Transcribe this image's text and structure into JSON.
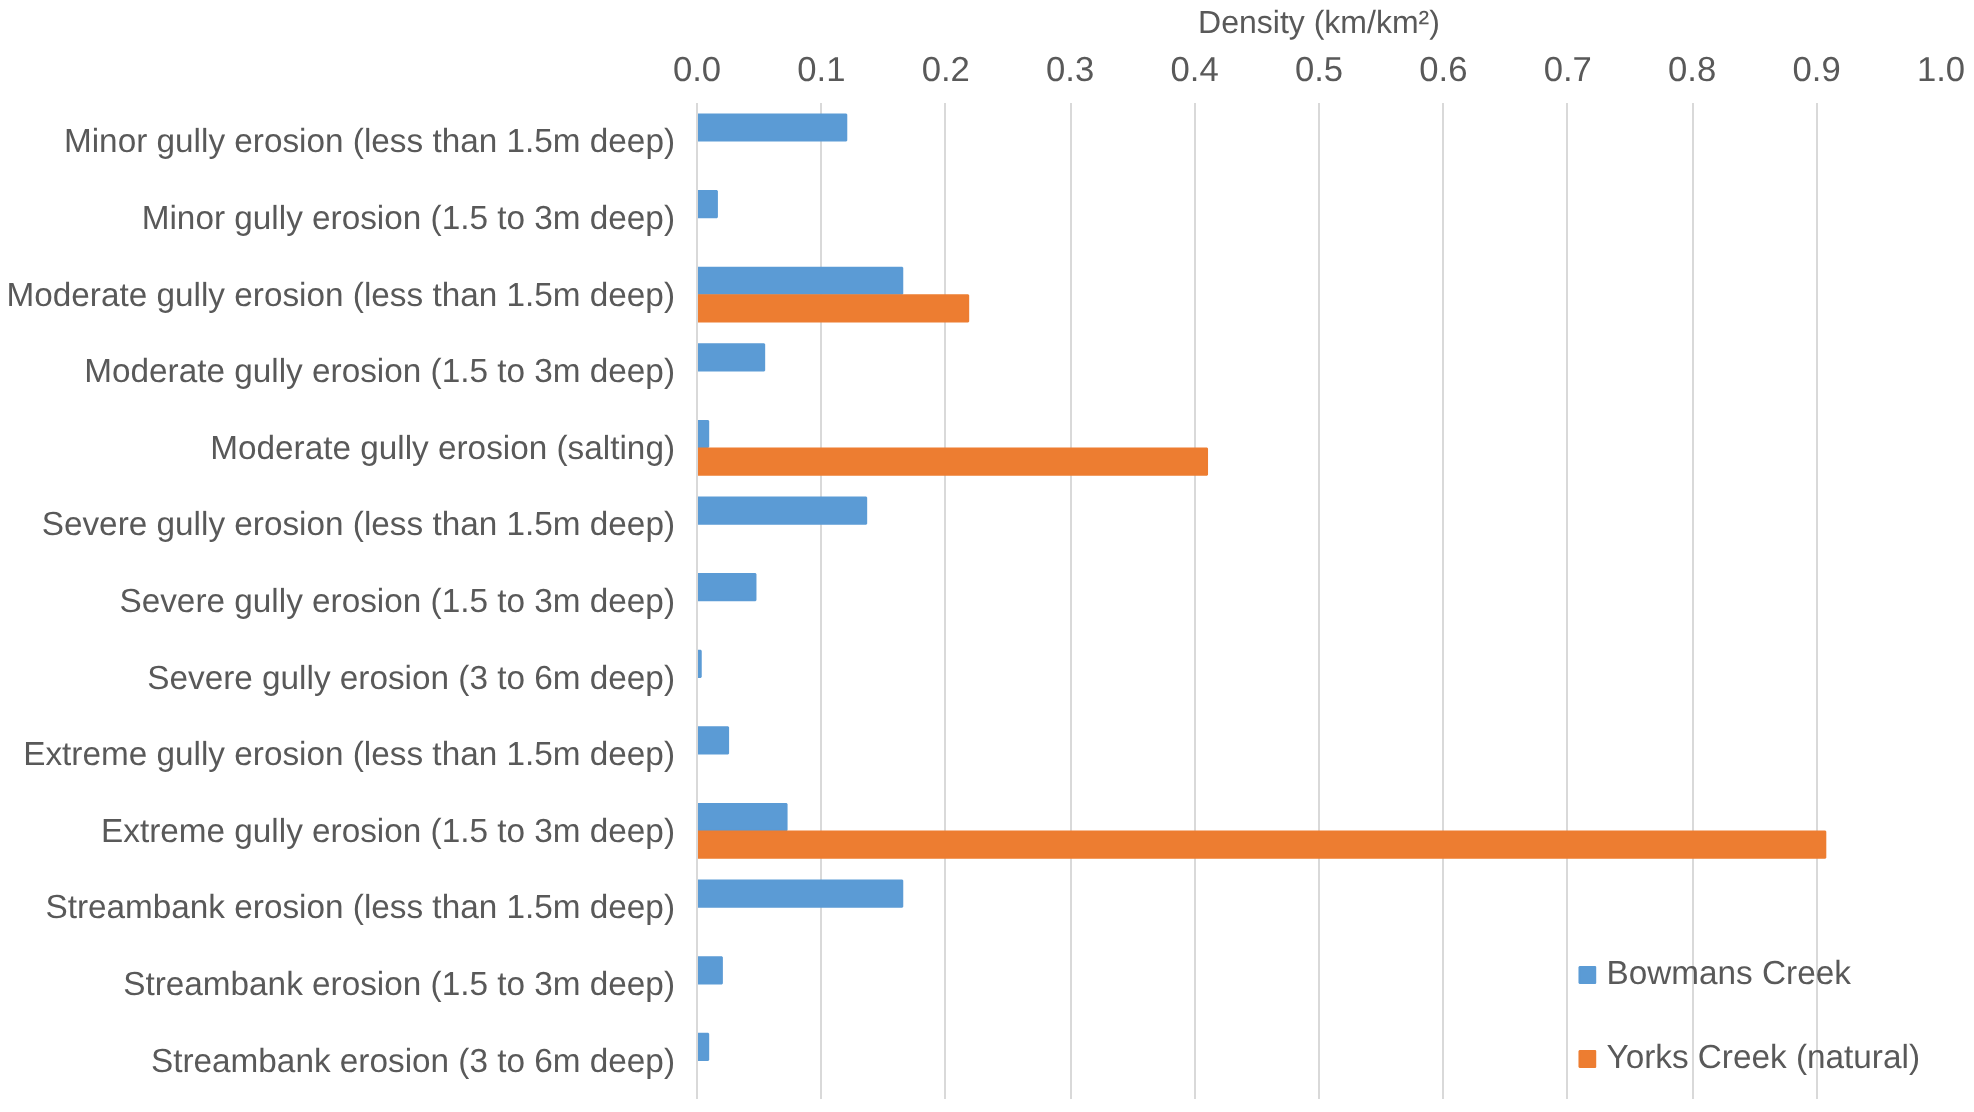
{
  "chart_data": {
    "type": "bar",
    "orientation": "horizontal",
    "xlabel": "Density (km/km²)",
    "categories": [
      "Minor gully erosion (less than 1.5m deep)",
      "Minor gully erosion (1.5 to 3m deep)",
      "Moderate gully erosion (less than 1.5m deep)",
      "Moderate gully erosion (1.5 to 3m deep)",
      "Moderate gully erosion (salting)",
      "Severe gully erosion (less than 1.5m deep)",
      "Severe gully erosion (1.5 to 3m deep)",
      "Severe gully erosion (3 to 6m deep)",
      "Extreme gully erosion (less than 1.5m deep)",
      "Extreme gully erosion (1.5 to 3m deep)",
      "Streambank erosion (less than 1.5m deep)",
      "Streambank erosion (1.5 to 3m deep)",
      "Streambank erosion (3 to 6m deep)"
    ],
    "series": [
      {
        "name": "Bowmans Creek",
        "color": "#5b9bd5",
        "values": [
          0.12,
          0.016,
          0.165,
          0.054,
          0.009,
          0.136,
          0.047,
          0.003,
          0.025,
          0.072,
          0.165,
          0.02,
          0.009
        ]
      },
      {
        "name": "Yorks Creek (natural)",
        "color": "#ed7d31",
        "values": [
          null,
          null,
          0.218,
          null,
          0.41,
          null,
          null,
          null,
          null,
          0.907,
          null,
          null,
          null
        ]
      }
    ],
    "xlim": [
      0,
      1.0
    ],
    "xticks": [
      {
        "value": 0,
        "label": "0.0"
      },
      0.1,
      0.2,
      0.3,
      0.4,
      0.5,
      0.6,
      0.7,
      0.8,
      0.9,
      {
        "value": 1,
        "label": "1.0"
      }
    ],
    "grid": "x",
    "legend": "bottom right"
  }
}
